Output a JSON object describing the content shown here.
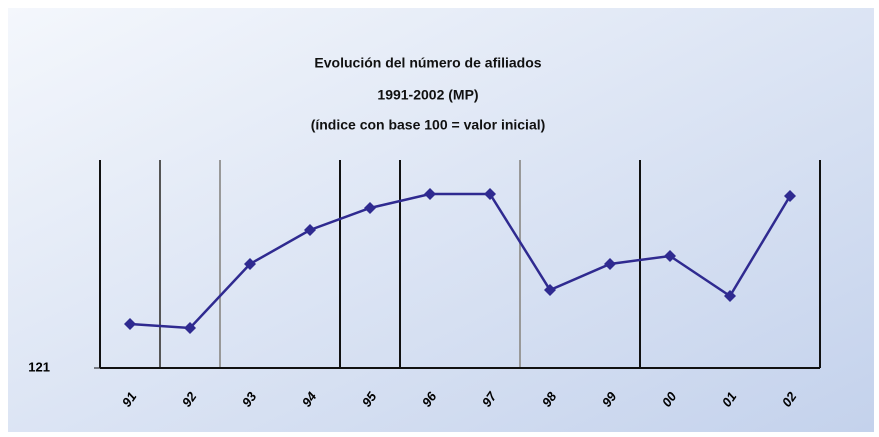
{
  "chart_data": {
    "type": "line",
    "title": [
      "Evolución del número de afiliados",
      "1991-2002 (MP)",
      "(índice con base 100 = valor inicial)"
    ],
    "categories": [
      "91",
      "92",
      "93",
      "94",
      "95",
      "96",
      "97",
      "98",
      "99",
      "00",
      "01",
      "02"
    ],
    "series": [
      {
        "name": "Afiliados",
        "color": "#2f2a90",
        "values": [
          132,
          131,
          147,
          155.5,
          161,
          164.5,
          164.5,
          140.5,
          147,
          149,
          139,
          164
        ]
      }
    ],
    "ylim": [
      121,
      173
    ],
    "yticks": [
      121
    ],
    "grid": false
  }
}
